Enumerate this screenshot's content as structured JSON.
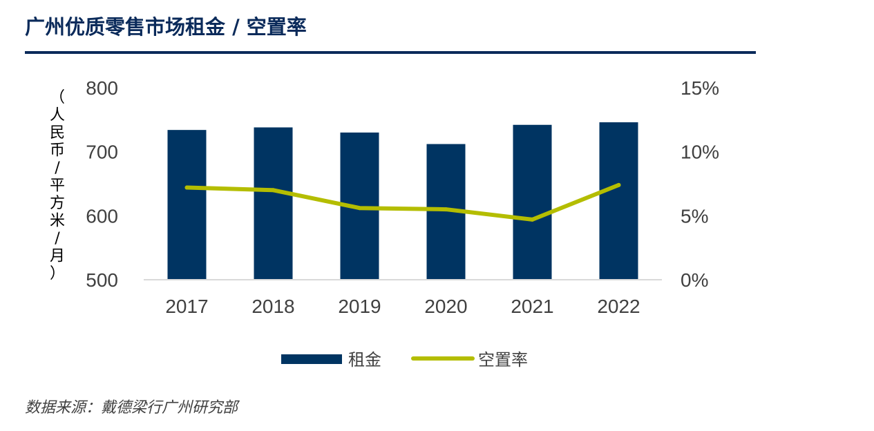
{
  "title": "广州优质零售市场租金 / 空置率",
  "source": "数据来源：戴德梁行广州研究部",
  "colors": {
    "title": "#0a2a5a",
    "bar": "#003462",
    "line": "#b4bd00",
    "text": "#404040",
    "axis": "#d9d9d9"
  },
  "chart_data": {
    "type": "bar",
    "categories": [
      "2017",
      "2018",
      "2019",
      "2020",
      "2021",
      "2022"
    ],
    "ylabel": "（人民币/平方米/月）",
    "y_left": {
      "ylim": [
        500,
        800
      ],
      "ticks": [
        "500",
        "600",
        "700",
        "800"
      ],
      "tick_values": [
        500,
        600,
        700,
        800
      ]
    },
    "y_right": {
      "ylim": [
        0,
        15
      ],
      "ticks": [
        "0%",
        "5%",
        "10%",
        "15%"
      ],
      "tick_values": [
        0,
        5,
        10,
        15
      ]
    },
    "series": [
      {
        "name": "租金",
        "type": "bar",
        "axis": "left",
        "values": [
          734,
          738,
          730,
          712,
          742,
          746
        ]
      },
      {
        "name": "空置率",
        "type": "line",
        "axis": "right",
        "values": [
          7.2,
          7.0,
          5.6,
          5.5,
          4.7,
          7.4
        ]
      }
    ],
    "legend_position": "bottom",
    "grid": false
  }
}
